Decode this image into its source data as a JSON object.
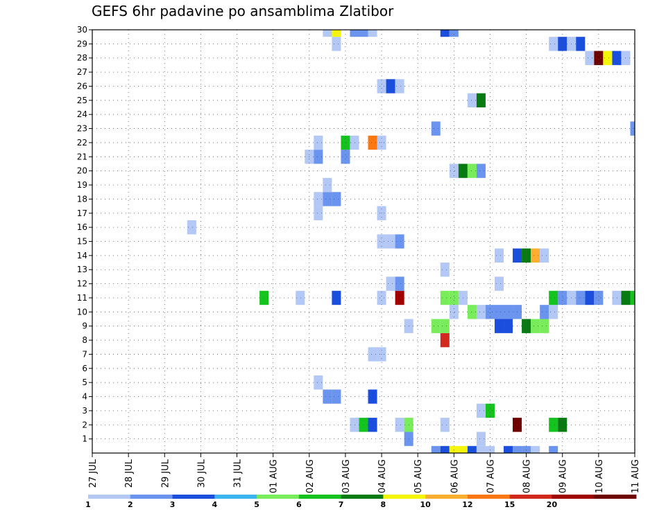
{
  "chart_data": {
    "type": "heatmap",
    "title": "GEFS 6hr padavine po ansamblima Zlatibor",
    "xlabel": "",
    "ylabel": "",
    "x_tick_labels": [
      "27 JUL",
      "28 JUL",
      "29 JUL",
      "30 JUL",
      "31 JUL",
      "01 AUG",
      "02 AUG",
      "03 AUG",
      "04 AUG",
      "05 AUG",
      "06 AUG",
      "07 AUG",
      "08 AUG",
      "09 AUG",
      "10 AUG",
      "11 AUG"
    ],
    "x_range_days": [
      0,
      15
    ],
    "y_tick_labels": [
      "1",
      "2",
      "3",
      "4",
      "5",
      "6",
      "7",
      "8",
      "9",
      "10",
      "11",
      "12",
      "13",
      "14",
      "15",
      "16",
      "17",
      "18",
      "19",
      "20",
      "21",
      "22",
      "23",
      "24",
      "25",
      "26",
      "27",
      "28",
      "29",
      "30"
    ],
    "y_range": [
      0,
      30
    ],
    "grid": true,
    "colorbar": {
      "labels": [
        "1",
        "2",
        "3",
        "4",
        "5",
        "6",
        "7",
        "8",
        "10",
        "12",
        "15",
        "20"
      ],
      "colors": [
        "#b4c8f5",
        "#6a94ee",
        "#1c4ede",
        "#3cb4f0",
        "#78ec5a",
        "#14c31e",
        "#077a12",
        "#f5f50a",
        "#faaf30",
        "#fa7814",
        "#d2281e",
        "#a00000",
        "#6e0000"
      ]
    },
    "cells": [
      {
        "m": 0,
        "d": 9.5,
        "c": 1
      },
      {
        "m": 0,
        "d": 9.75,
        "c": 2
      },
      {
        "m": 0,
        "d": 10.0,
        "c": 7
      },
      {
        "m": 0,
        "d": 10.25,
        "c": 7
      },
      {
        "m": 0,
        "d": 10.5,
        "c": 2
      },
      {
        "m": 0,
        "d": 10.75,
        "c": 0
      },
      {
        "m": 0,
        "d": 11.0,
        "c": 0
      },
      {
        "m": 0,
        "d": 11.5,
        "c": 2
      },
      {
        "m": 0,
        "d": 11.75,
        "c": 1
      },
      {
        "m": 0,
        "d": 12.0,
        "c": 1
      },
      {
        "m": 0,
        "d": 12.25,
        "c": 0
      },
      {
        "m": 0,
        "d": 12.75,
        "c": 1
      },
      {
        "m": 1,
        "d": 8.75,
        "c": 1
      },
      {
        "m": 1,
        "d": 10.75,
        "c": 0
      },
      {
        "m": 2,
        "d": 7.25,
        "c": 0
      },
      {
        "m": 2,
        "d": 7.5,
        "c": 5
      },
      {
        "m": 2,
        "d": 7.75,
        "c": 2
      },
      {
        "m": 2,
        "d": 8.5,
        "c": 0
      },
      {
        "m": 2,
        "d": 8.75,
        "c": 4
      },
      {
        "m": 2,
        "d": 9.75,
        "c": 0
      },
      {
        "m": 2,
        "d": 11.75,
        "c": 12
      },
      {
        "m": 2,
        "d": 12.75,
        "c": 5
      },
      {
        "m": 2,
        "d": 13.0,
        "c": 6
      },
      {
        "m": 3,
        "d": 10.75,
        "c": 0
      },
      {
        "m": 3,
        "d": 11.0,
        "c": 5
      },
      {
        "m": 4,
        "d": 6.5,
        "c": 1
      },
      {
        "m": 4,
        "d": 6.75,
        "c": 1
      },
      {
        "m": 4,
        "d": 7.75,
        "c": 2
      },
      {
        "m": 5,
        "d": 6.25,
        "c": 0
      },
      {
        "m": 7,
        "d": 7.75,
        "c": 0
      },
      {
        "m": 7,
        "d": 8.0,
        "c": 0
      },
      {
        "m": 8,
        "d": 9.75,
        "c": 10
      },
      {
        "m": 9,
        "d": 8.75,
        "c": 0
      },
      {
        "m": 9,
        "d": 9.5,
        "c": 4
      },
      {
        "m": 9,
        "d": 9.75,
        "c": 4
      },
      {
        "m": 9,
        "d": 11.25,
        "c": 2
      },
      {
        "m": 9,
        "d": 11.5,
        "c": 2
      },
      {
        "m": 9,
        "d": 12.0,
        "c": 6
      },
      {
        "m": 9,
        "d": 12.25,
        "c": 4
      },
      {
        "m": 9,
        "d": 12.5,
        "c": 4
      },
      {
        "m": 10,
        "d": 10.0,
        "c": 0
      },
      {
        "m": 10,
        "d": 10.5,
        "c": 4
      },
      {
        "m": 10,
        "d": 10.75,
        "c": 0
      },
      {
        "m": 10,
        "d": 11.0,
        "c": 1
      },
      {
        "m": 10,
        "d": 11.25,
        "c": 1
      },
      {
        "m": 10,
        "d": 11.5,
        "c": 1
      },
      {
        "m": 10,
        "d": 11.75,
        "c": 1
      },
      {
        "m": 10,
        "d": 12.5,
        "c": 1
      },
      {
        "m": 10,
        "d": 12.75,
        "c": 0
      },
      {
        "m": 11,
        "d": 4.75,
        "c": 5
      },
      {
        "m": 11,
        "d": 5.75,
        "c": 0
      },
      {
        "m": 11,
        "d": 6.75,
        "c": 2
      },
      {
        "m": 11,
        "d": 8.0,
        "c": 0
      },
      {
        "m": 11,
        "d": 8.5,
        "c": 11
      },
      {
        "m": 11,
        "d": 9.75,
        "c": 4
      },
      {
        "m": 11,
        "d": 10.0,
        "c": 4
      },
      {
        "m": 11,
        "d": 10.25,
        "c": 0
      },
      {
        "m": 11,
        "d": 12.75,
        "c": 5
      },
      {
        "m": 11,
        "d": 13.0,
        "c": 1
      },
      {
        "m": 11,
        "d": 13.25,
        "c": 0
      },
      {
        "m": 11,
        "d": 13.5,
        "c": 1
      },
      {
        "m": 11,
        "d": 13.75,
        "c": 2
      },
      {
        "m": 11,
        "d": 14.0,
        "c": 1
      },
      {
        "m": 11,
        "d": 14.5,
        "c": 0
      },
      {
        "m": 11,
        "d": 14.75,
        "c": 6
      },
      {
        "m": 11,
        "d": 15.0,
        "c": 5
      },
      {
        "m": 12,
        "d": 8.25,
        "c": 0
      },
      {
        "m": 12,
        "d": 8.5,
        "c": 1
      },
      {
        "m": 12,
        "d": 11.25,
        "c": 0
      },
      {
        "m": 13,
        "d": 9.75,
        "c": 0
      },
      {
        "m": 14,
        "d": 11.25,
        "c": 0
      },
      {
        "m": 14,
        "d": 11.75,
        "c": 2
      },
      {
        "m": 14,
        "d": 12.0,
        "c": 6
      },
      {
        "m": 14,
        "d": 12.25,
        "c": 8
      },
      {
        "m": 14,
        "d": 12.5,
        "c": 0
      },
      {
        "m": 15,
        "d": 8.0,
        "c": 0
      },
      {
        "m": 15,
        "d": 8.25,
        "c": 0
      },
      {
        "m": 15,
        "d": 8.5,
        "c": 1
      },
      {
        "m": 16,
        "d": 2.75,
        "c": 0
      },
      {
        "m": 17,
        "d": 6.25,
        "c": 0
      },
      {
        "m": 17,
        "d": 8.0,
        "c": 0
      },
      {
        "m": 18,
        "d": 6.25,
        "c": 0
      },
      {
        "m": 18,
        "d": 6.5,
        "c": 1
      },
      {
        "m": 18,
        "d": 6.75,
        "c": 1
      },
      {
        "m": 19,
        "d": 6.5,
        "c": 0
      },
      {
        "m": 20,
        "d": 10.0,
        "c": 0
      },
      {
        "m": 20,
        "d": 10.25,
        "c": 6
      },
      {
        "m": 20,
        "d": 10.5,
        "c": 4
      },
      {
        "m": 20,
        "d": 10.75,
        "c": 1
      },
      {
        "m": 21,
        "d": 6.0,
        "c": 0
      },
      {
        "m": 21,
        "d": 6.25,
        "c": 1
      },
      {
        "m": 21,
        "d": 7.0,
        "c": 1
      },
      {
        "m": 22,
        "d": 6.25,
        "c": 0
      },
      {
        "m": 22,
        "d": 7.0,
        "c": 5
      },
      {
        "m": 22,
        "d": 7.25,
        "c": 0
      },
      {
        "m": 22,
        "d": 7.75,
        "c": 9
      },
      {
        "m": 22,
        "d": 8.0,
        "c": 0
      },
      {
        "m": 23,
        "d": 9.5,
        "c": 1
      },
      {
        "m": 23,
        "d": 15.0,
        "c": 1
      },
      {
        "m": 25,
        "d": 10.5,
        "c": 0
      },
      {
        "m": 25,
        "d": 10.75,
        "c": 6
      },
      {
        "m": 26,
        "d": 8.0,
        "c": 0
      },
      {
        "m": 26,
        "d": 8.25,
        "c": 2
      },
      {
        "m": 26,
        "d": 8.5,
        "c": 0
      },
      {
        "m": 28,
        "d": 13.75,
        "c": 0
      },
      {
        "m": 28,
        "d": 14.0,
        "c": 12
      },
      {
        "m": 28,
        "d": 14.25,
        "c": 7
      },
      {
        "m": 28,
        "d": 14.5,
        "c": 2
      },
      {
        "m": 28,
        "d": 14.75,
        "c": 0
      },
      {
        "m": 29,
        "d": 6.75,
        "c": 0
      },
      {
        "m": 29,
        "d": 12.75,
        "c": 0
      },
      {
        "m": 29,
        "d": 13.0,
        "c": 2
      },
      {
        "m": 29,
        "d": 13.25,
        "c": 0
      },
      {
        "m": 29,
        "d": 13.5,
        "c": 2
      },
      {
        "m": 30,
        "d": 6.5,
        "c": 0
      },
      {
        "m": 30,
        "d": 6.75,
        "c": 7
      },
      {
        "m": 30,
        "d": 7.25,
        "c": 1
      },
      {
        "m": 30,
        "d": 7.5,
        "c": 1
      },
      {
        "m": 30,
        "d": 7.75,
        "c": 0
      },
      {
        "m": 30,
        "d": 9.75,
        "c": 2
      },
      {
        "m": 30,
        "d": 10.0,
        "c": 1
      }
    ]
  }
}
